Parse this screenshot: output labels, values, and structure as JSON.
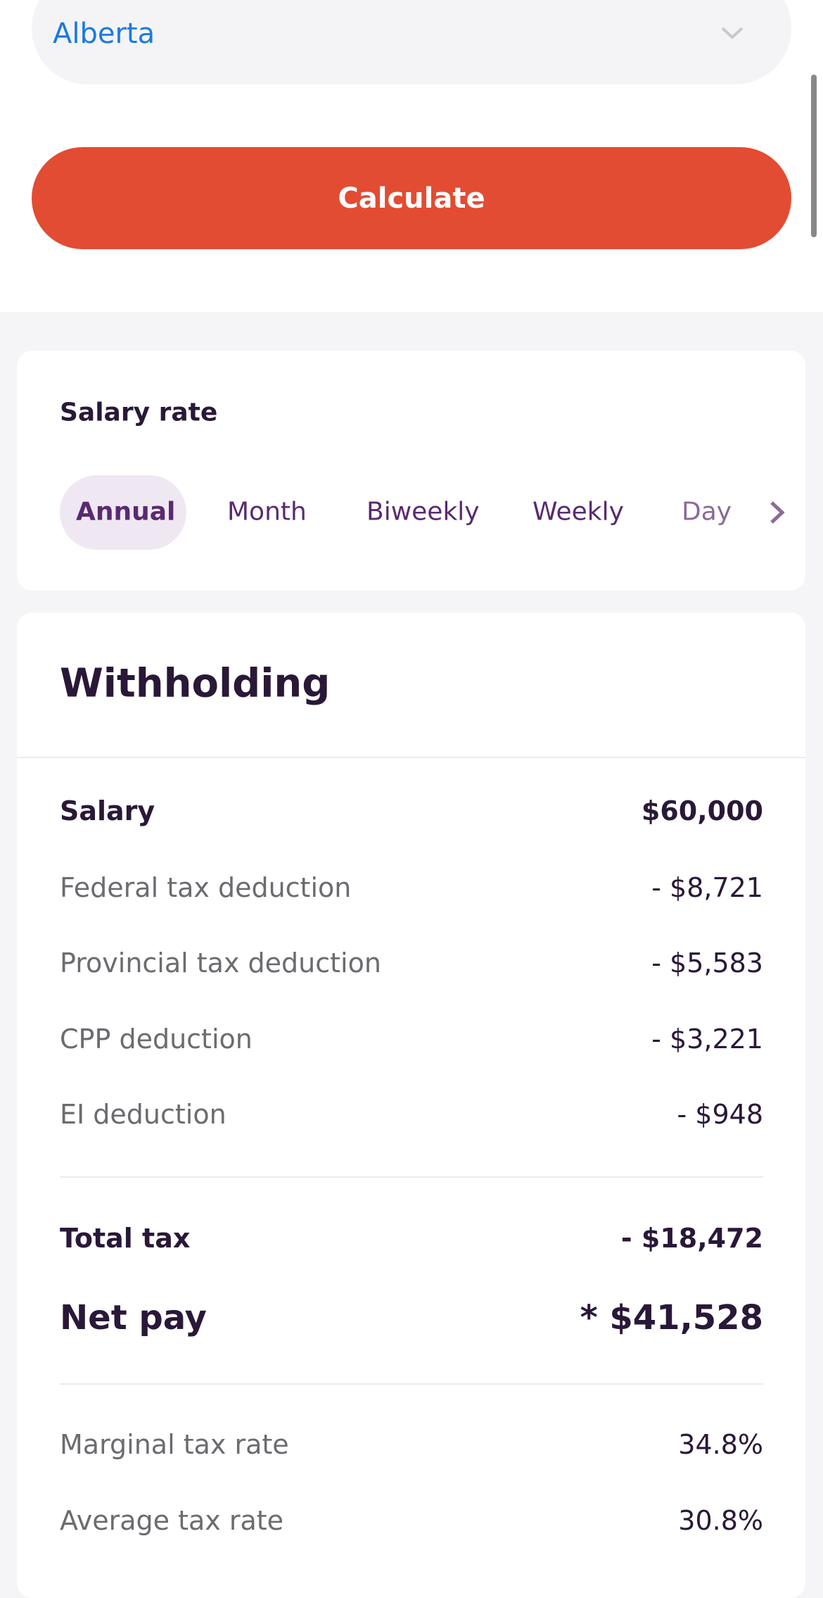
{
  "province": "Alberta",
  "button": "Calculate",
  "salary_rate": {
    "title": "Salary rate",
    "tabs": [
      "Annual",
      "Month",
      "Biweekly",
      "Weekly",
      "Day"
    ]
  },
  "withholding": {
    "title": "Withholding",
    "rows": [
      {
        "label": "Salary",
        "value": "$60,000"
      },
      {
        "label": "Federal tax deduction",
        "value": "- $8,721"
      },
      {
        "label": "Provincial tax deduction",
        "value": "- $5,583"
      },
      {
        "label": "CPP deduction",
        "value": "- $3,221"
      },
      {
        "label": "EI deduction",
        "value": "- $948"
      }
    ],
    "total": {
      "label": "Total tax",
      "value": "- $18,472"
    },
    "net": {
      "label": "Net pay",
      "value": "* $41,528"
    },
    "rates": [
      {
        "label": "Marginal tax rate",
        "value": "34.8%"
      },
      {
        "label": "Average tax rate",
        "value": "30.8%"
      }
    ]
  }
}
